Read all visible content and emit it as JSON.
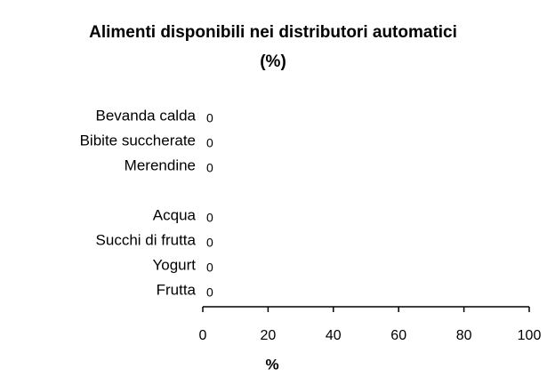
{
  "chart_data": {
    "type": "bar",
    "orientation": "horizontal",
    "title": [
      "Alimenti disponibili nei distributori automatici",
      "(%)"
    ],
    "categories": [
      "Bevanda calda",
      "Bibite succherate",
      "Merendine",
      null,
      "Acqua",
      "Succhi di frutta",
      "Yogurt",
      "Frutta"
    ],
    "values": [
      0,
      0,
      0,
      null,
      0,
      0,
      0,
      0
    ],
    "color": "#4472c4",
    "xlabel": "%",
    "xlim": [
      0,
      100
    ],
    "xticks": [
      0,
      20,
      40,
      60,
      80,
      100
    ],
    "grid": false
  }
}
